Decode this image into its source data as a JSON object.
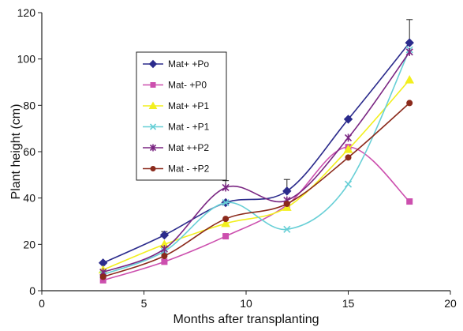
{
  "chart_data": {
    "type": "line",
    "title": "",
    "xlabel": "Months after transplanting",
    "ylabel": "Plant height (cm)",
    "xlim": [
      0,
      20
    ],
    "ylim": [
      0,
      120
    ],
    "xticks": [
      "0",
      "5",
      "10",
      "15",
      "20"
    ],
    "yticks": [
      "0",
      "20",
      "40",
      "60",
      "80",
      "100",
      "120"
    ],
    "grid": false,
    "legend_position": "left-center",
    "x": [
      3,
      6,
      9,
      12,
      15,
      18
    ],
    "series": [
      {
        "name": "Mat+ +Po",
        "color": "#2b2b8c",
        "marker": "diamond",
        "values": [
          12,
          24,
          38,
          43,
          74,
          107
        ],
        "error_upper": [
          0,
          1.5,
          0,
          5,
          0,
          10
        ]
      },
      {
        "name": "Mat-  +P0",
        "color": "#cc4fae",
        "marker": "square",
        "values": [
          4.5,
          12.5,
          23.5,
          37,
          62,
          38.5
        ]
      },
      {
        "name": "Mat+ +P1",
        "color": "#f2ef1e",
        "marker": "triangle",
        "values": [
          9,
          20,
          29,
          36,
          61,
          91
        ]
      },
      {
        "name": "Mat - +P1",
        "color": "#67cfd6",
        "marker": "x",
        "values": [
          7,
          17,
          38,
          26.5,
          46,
          104
        ]
      },
      {
        "name": "Mat ++P2",
        "color": "#7a2682",
        "marker": "star",
        "values": [
          8,
          18,
          44.5,
          39,
          66,
          103
        ],
        "error_upper": [
          0,
          0,
          3,
          0,
          0,
          0
        ]
      },
      {
        "name": "Mat - +P2",
        "color": "#8b2a1c",
        "marker": "circle",
        "values": [
          6,
          15,
          31,
          37.5,
          57.5,
          81
        ]
      }
    ]
  }
}
